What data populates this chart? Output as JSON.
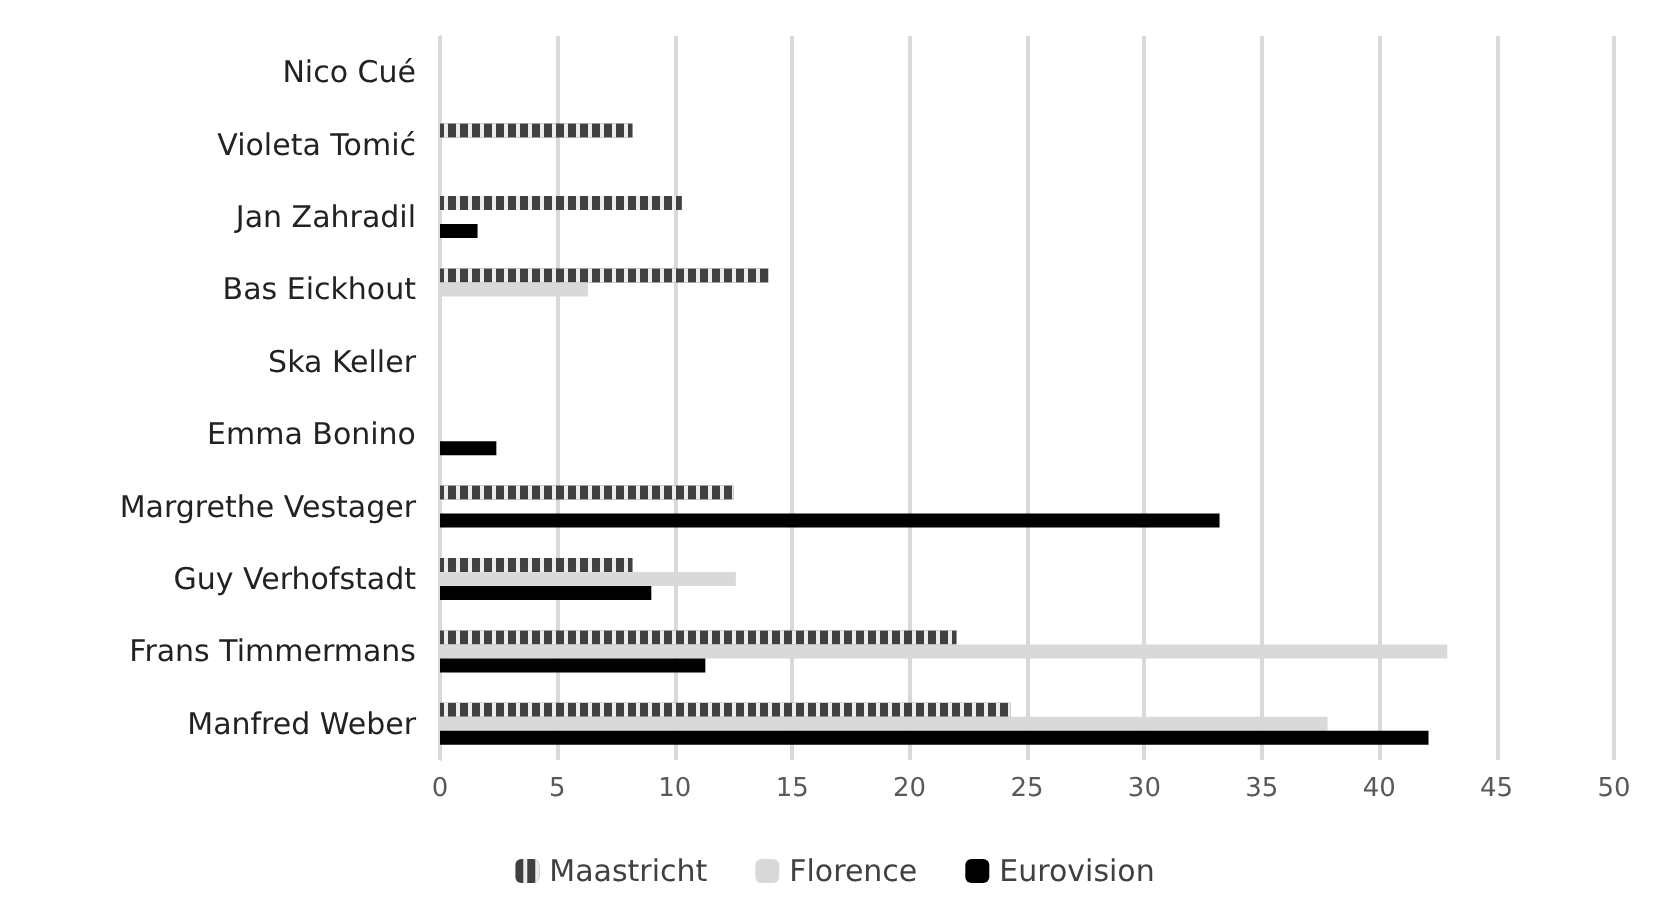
{
  "chart_data": {
    "type": "bar",
    "orientation": "horizontal",
    "categories": [
      "Nico Cué",
      "Violeta Tomić",
      "Jan Zahradil",
      "Bas Eickhout",
      "Ska Keller",
      "Emma Bonino",
      "Margrethe Vestager",
      "Guy Verhofstadt",
      "Frans Timmermans",
      "Manfred Weber"
    ],
    "series": [
      {
        "name": "Maastricht",
        "color": "#404040",
        "values": [
          null,
          8.2,
          10.3,
          14.0,
          null,
          null,
          12.5,
          8.2,
          22.0,
          24.3
        ]
      },
      {
        "name": "Florence",
        "color": "#d9d9d9",
        "values": [
          null,
          null,
          null,
          6.3,
          null,
          null,
          null,
          12.6,
          42.9,
          37.8
        ]
      },
      {
        "name": "Eurovision",
        "color": "#000000",
        "values": [
          null,
          null,
          1.6,
          null,
          null,
          2.4,
          33.2,
          9.0,
          11.3,
          42.1
        ]
      }
    ],
    "xlim": [
      0,
      50
    ],
    "xticks": [
      0,
      5,
      10,
      15,
      20,
      25,
      30,
      35,
      40,
      45,
      50
    ],
    "grid": "x",
    "legend": "bottom"
  }
}
